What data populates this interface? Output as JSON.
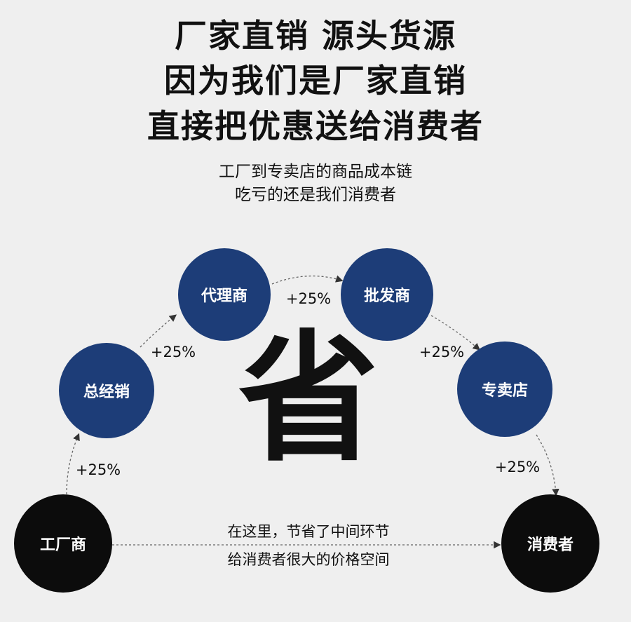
{
  "title_lines": [
    "厂家直销 源头货源",
    "因为我们是厂家直销",
    "直接把优惠送给消费者"
  ],
  "subtitle_lines": [
    "工厂到专卖店的商品成本链",
    "吃亏的还是我们消费者"
  ],
  "nodes": {
    "factory": "工厂商",
    "distributor": "总经销",
    "agent": "代理商",
    "wholesaler": "批发商",
    "store": "专卖店",
    "consumer": "消费者"
  },
  "markup_label": "+25%",
  "center_char": "省",
  "note_lines": [
    "在这里，节省了中间环节",
    "给消费者很大的价格空间"
  ],
  "colors": {
    "background": "#efefef",
    "node_blue": "#1d3d78",
    "node_black": "#0c0c0c"
  }
}
